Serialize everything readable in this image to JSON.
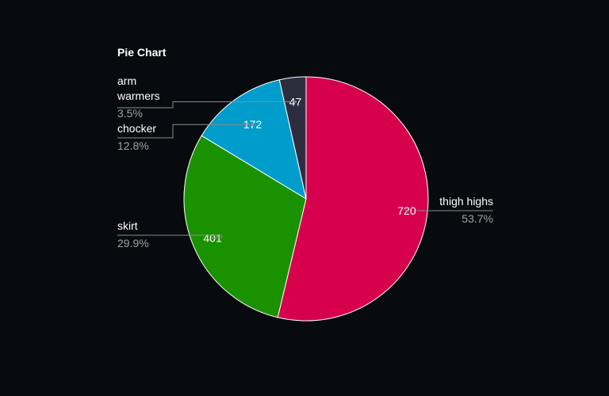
{
  "chart_data": {
    "type": "pie",
    "title": "Pie Chart",
    "slices": [
      {
        "label": "thigh highs",
        "value": 720,
        "percent": "53.7%",
        "color": "#d6004d"
      },
      {
        "label": "skirt",
        "value": 401,
        "percent": "29.9%",
        "color": "#1a9200"
      },
      {
        "label": "chocker",
        "value": 172,
        "percent": "12.8%",
        "color": "#009ccc"
      },
      {
        "label": "arm warmers",
        "value": 47,
        "percent": "3.5%",
        "color": "#2e2c3f"
      }
    ],
    "legend": "none"
  }
}
